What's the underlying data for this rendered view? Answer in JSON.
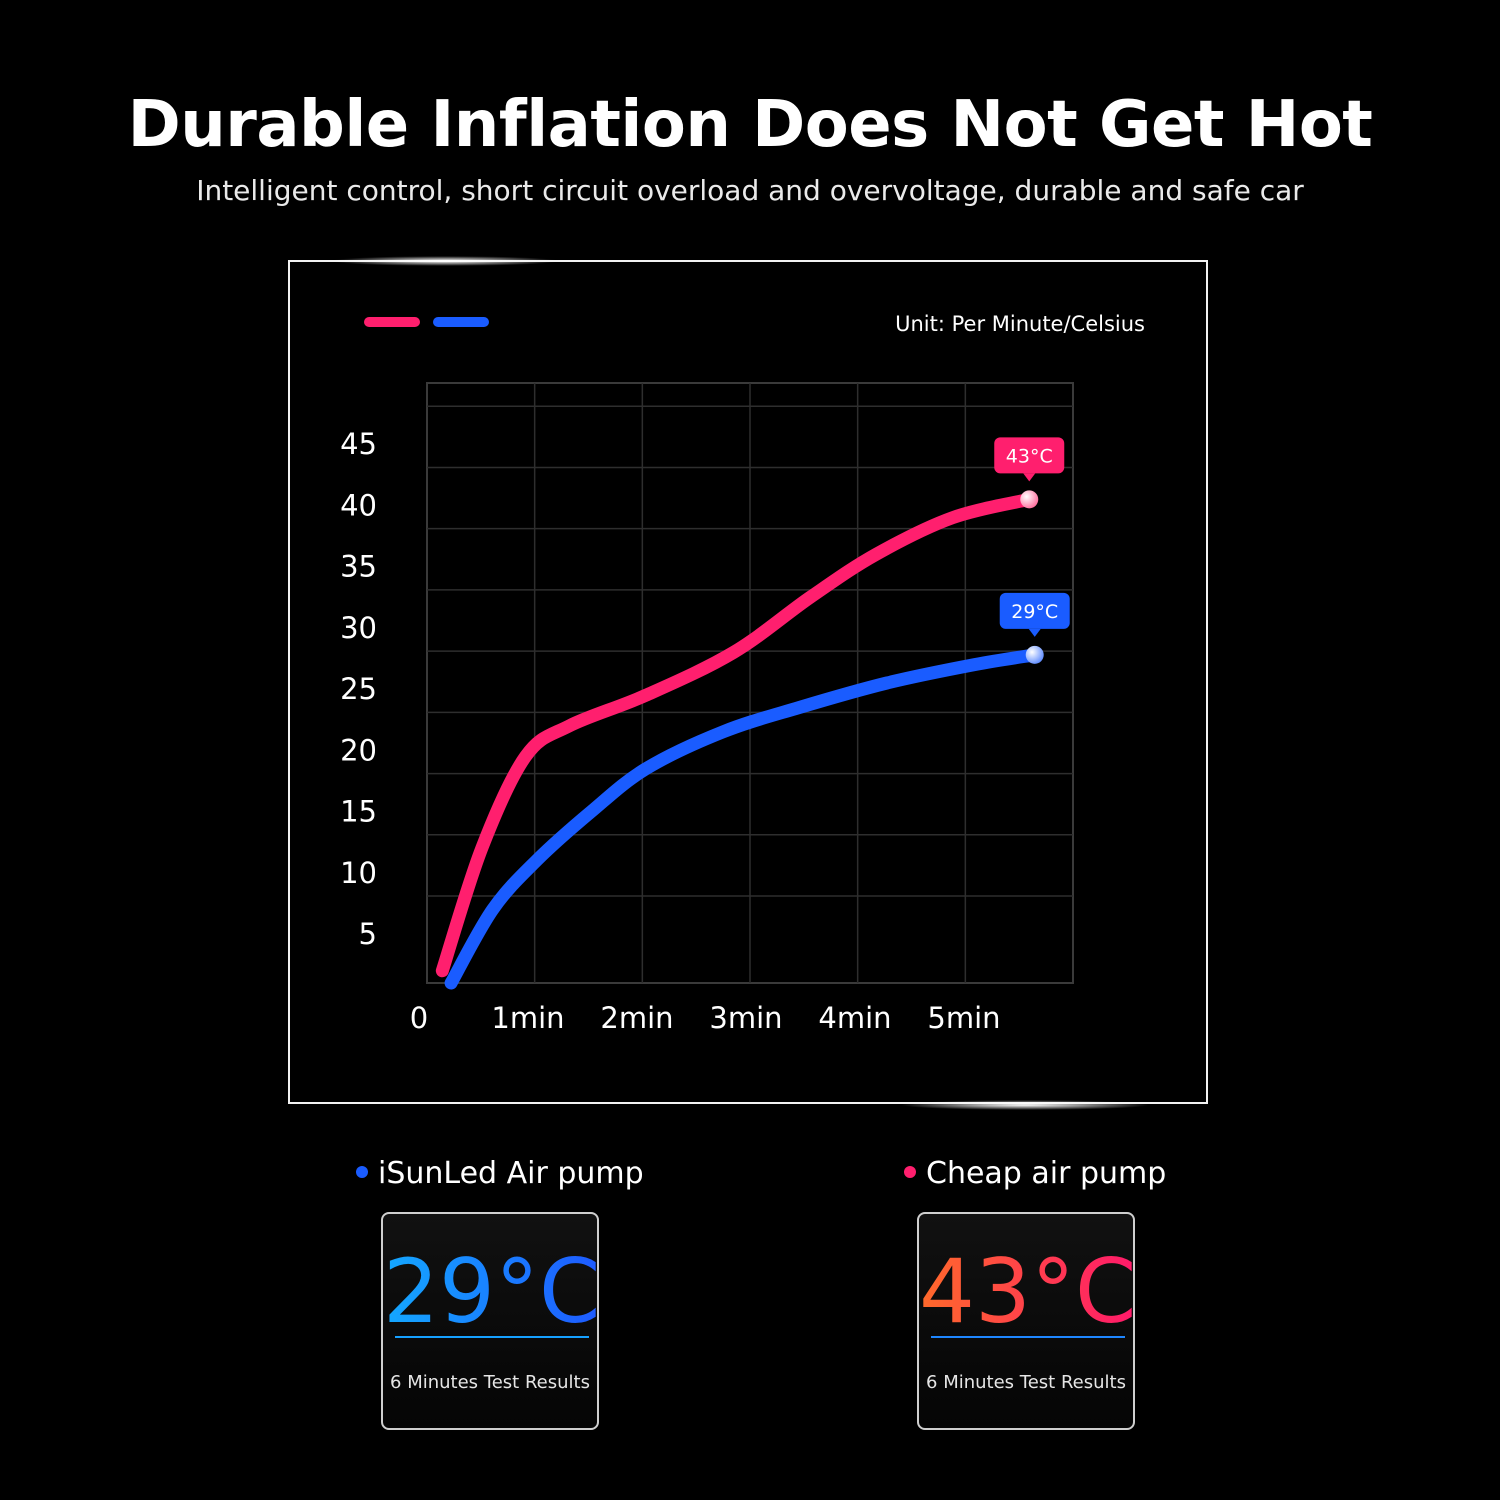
{
  "header": {
    "title": "Durable Inflation Does Not Get Hot",
    "subtitle": "Intelligent control, short circuit overload and overvoltage, durable and safe car"
  },
  "chart_data": {
    "type": "line",
    "unit_label": "Unit: Per Minute/Celsius",
    "x_ticks": [
      "0",
      "1min",
      "2min",
      "3min",
      "4min",
      "5min"
    ],
    "y_ticks": [
      "5",
      "10",
      "15",
      "20",
      "25",
      "30",
      "35",
      "40",
      "45"
    ],
    "xlim": [
      0,
      5.9
    ],
    "ylim": [
      1,
      50
    ],
    "grid": true,
    "series": [
      {
        "color": "#ff1f6e",
        "x": [
          0.14,
          0.5,
          0.9,
          1.3,
          2.0,
          2.8,
          3.5,
          4.1,
          4.8,
          5.5
        ],
        "y": [
          2,
          12,
          19.5,
          22,
          24.5,
          28,
          32.5,
          36,
          39,
          40.5
        ],
        "end_label": "43°C"
      },
      {
        "color": "#1a5cff",
        "x": [
          0.22,
          0.6,
          1.0,
          1.5,
          2.0,
          2.7,
          3.4,
          4.2,
          5.0,
          5.55
        ],
        "y": [
          1,
          7,
          11,
          15,
          18.5,
          21.5,
          23.5,
          25.5,
          27,
          27.8
        ],
        "end_label": "29°C"
      }
    ]
  },
  "results": [
    {
      "name": "iSunLed Air pump",
      "dot_color": "#1a5cff",
      "temp": "29°C",
      "caption": "6 Minutes Test Results"
    },
    {
      "name": "Cheap air pump",
      "dot_color": "#ff1f6e",
      "temp": "43°C",
      "caption": "6 Minutes Test Results"
    }
  ]
}
